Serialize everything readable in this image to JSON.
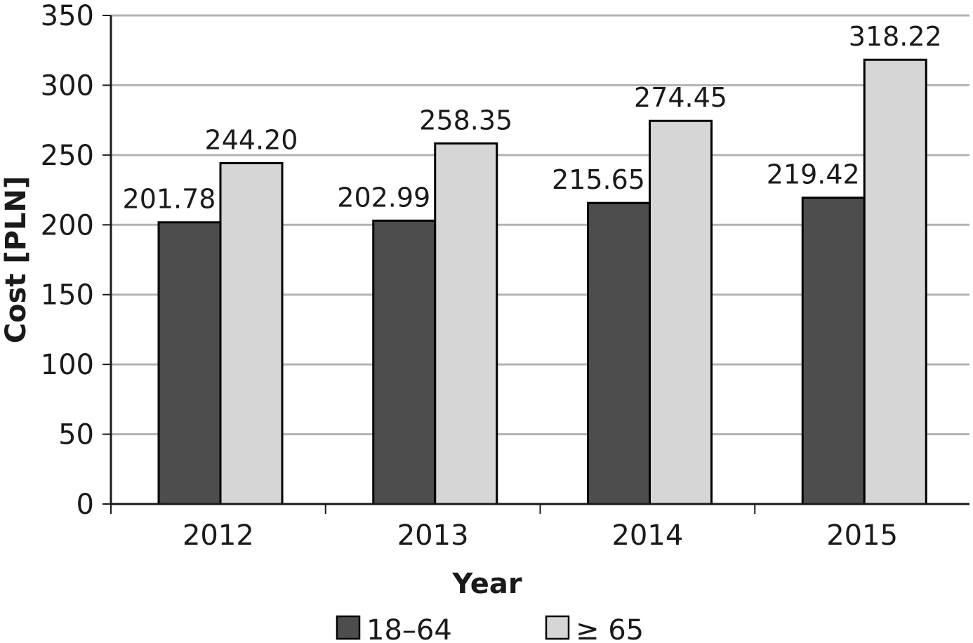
{
  "chart_data": {
    "type": "bar",
    "categories": [
      "2012",
      "2013",
      "2014",
      "2015"
    ],
    "series": [
      {
        "name": "18–64",
        "values": [
          201.78,
          202.99,
          215.65,
          219.42
        ],
        "labels": [
          "201.78",
          "202.99",
          "215.65",
          "219.42"
        ],
        "color": "#4d4d4d"
      },
      {
        "name": "≥ 65",
        "values": [
          244.2,
          258.35,
          274.45,
          318.22
        ],
        "labels": [
          "244.20",
          "258.35",
          "274.45",
          "318.22"
        ],
        "color": "#d6d6d6"
      }
    ],
    "xlabel": "Year",
    "ylabel": "Cost [PLN]",
    "ylim": [
      0,
      350
    ],
    "yticks": [
      0,
      50,
      100,
      150,
      200,
      250,
      300,
      350
    ],
    "grid": true,
    "legend_position": "bottom"
  }
}
